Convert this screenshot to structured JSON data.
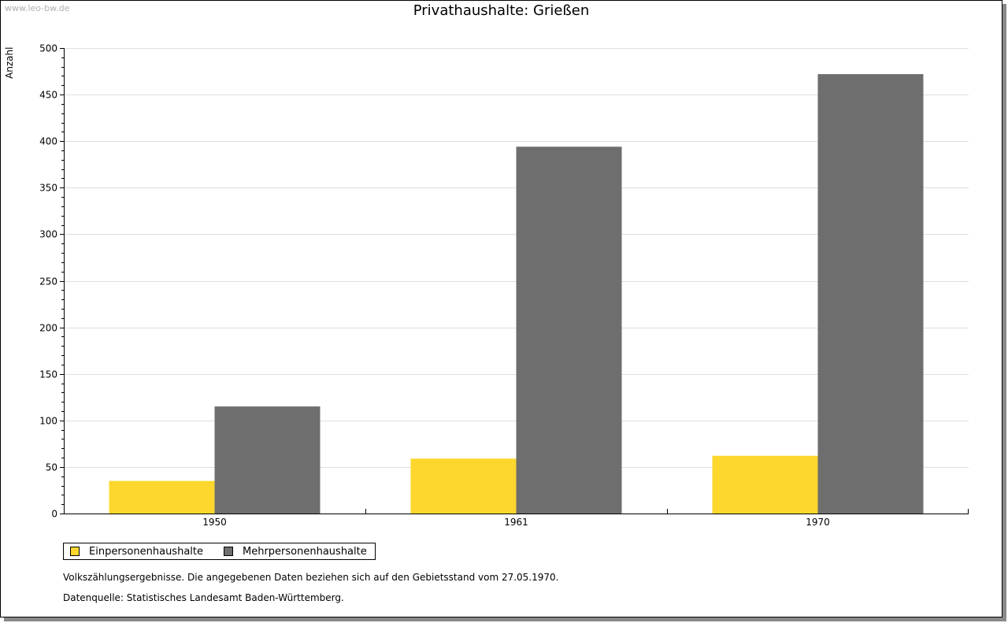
{
  "watermark": "www.leo-bw.de",
  "notes": {
    "line1": "Volkszählungsergebnisse. Die angegebenen Daten beziehen sich auf den Gebietsstand vom 27.05.1970.",
    "line2": "Datenquelle: Statistisches Landesamt Baden-Württemberg."
  },
  "chart_data": {
    "type": "bar",
    "title": "Privathaushalte: Grießen",
    "xlabel": "",
    "ylabel": "Anzahl",
    "categories": [
      "1950",
      "1961",
      "1970"
    ],
    "series": [
      {
        "name": "Einpersonenhaushalte",
        "color": "#fdd72e",
        "values": [
          35,
          59,
          62
        ]
      },
      {
        "name": "Mehrpersonenhaushalte",
        "color": "#6e6e6e",
        "values": [
          115,
          394,
          472
        ]
      }
    ],
    "ylim": [
      0,
      500
    ],
    "yticks": [
      "0",
      "50",
      "100",
      "150",
      "200",
      "250",
      "300",
      "350",
      "400",
      "450",
      "500"
    ],
    "grid": true,
    "legend": "bottom-left"
  }
}
